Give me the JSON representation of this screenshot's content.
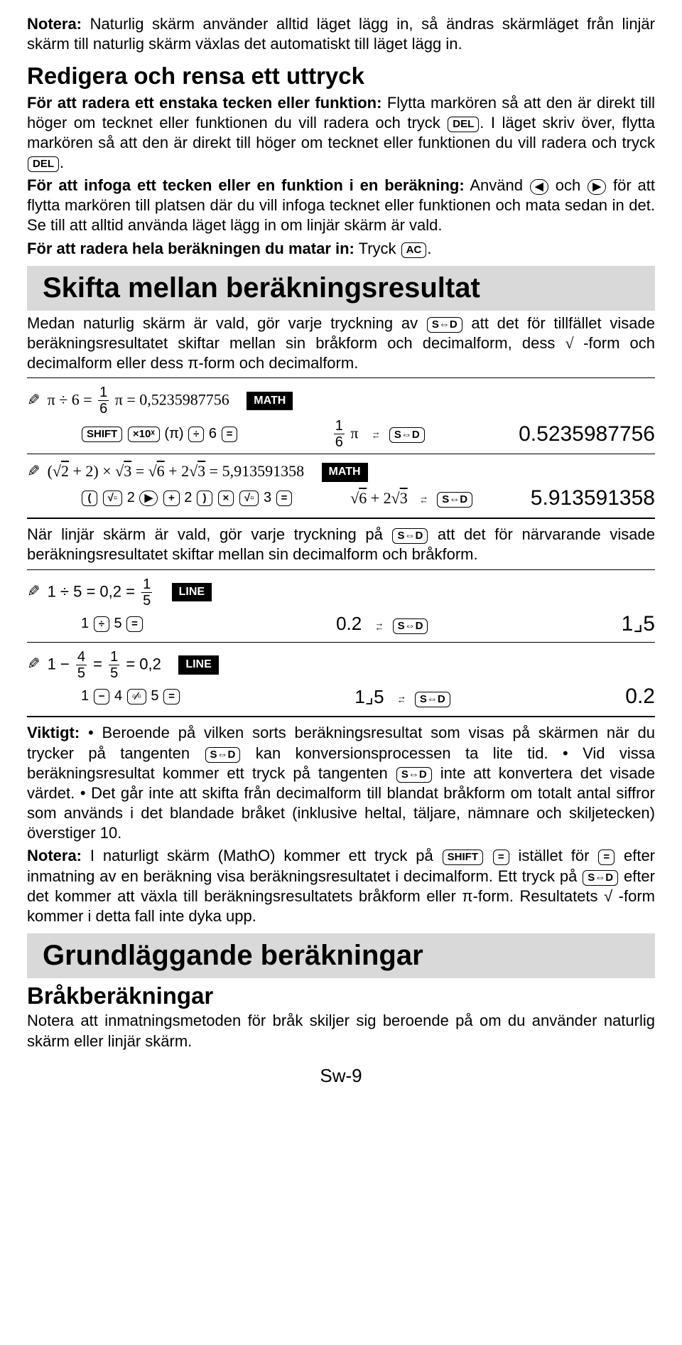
{
  "notera_top": {
    "label": "Notera:",
    "text": " Naturlig skärm använder alltid läget lägg in, så ändras skärmläget från linjär skärm till naturlig skärm växlas det automatiskt till läget lägg in."
  },
  "redigera": {
    "heading": "Redigera och rensa ett uttryck",
    "p1a": "För att radera ett enstaka tecken eller funktion:",
    "p1b": " Flytta markören så att den är direkt till höger om tecknet eller funktionen du vill radera och tryck ",
    "p1c": ". I läget skriv över, flytta markören så att den är direkt till höger om tecknet eller funktionen du vill radera och tryck ",
    "p2a": "För att infoga ett tecken eller en funktion i en beräkning:",
    "p2b": " Använd ",
    "p2c": " och ",
    "p2d": " för att flytta markören till platsen där du vill infoga tecknet eller funktionen och mata sedan in det. Se till att alltid använda läget lägg in om linjär skärm är vald.",
    "p3a": "För att radera hela beräkningen du matar in:",
    "p3b": " Tryck "
  },
  "keys": {
    "del": "DEL",
    "left": "◀",
    "right": "▶",
    "ac": "AC",
    "shift": "SHIFT",
    "x10x": "×10ˣ",
    "div": "÷",
    "eq": "=",
    "times": "×",
    "plus": "+",
    "minus": "−",
    "lparen": "(",
    "rparen": ")",
    "sqrt": "√▫",
    "frac": "▫⁄▫",
    "sd": "S⇔D",
    "six": "6",
    "two": "2",
    "three": "3",
    "one": "1",
    "four": "4",
    "five": "5",
    "pi_paren": "(π)"
  },
  "skifta": {
    "title": "Skifta mellan beräkningsresultat",
    "p1a": "Medan naturlig skärm är vald, gör varje tryckning av ",
    "p1b": " att det för tillfället visade beräkningsresultatet skiftar mellan sin bråkform och decimalform, dess ",
    "p1c": "-form och decimalform eller dess π-form och decimalform."
  },
  "badges": {
    "math": "MATH",
    "line": "LINE"
  },
  "ex1": {
    "expr_left": "π ÷ 6 = ",
    "expr_mid": " π  = 0,5235987756",
    "mid_disp_a": " π",
    "result": "0.5235987756",
    "frac_n": "1",
    "frac_d": "6"
  },
  "ex2": {
    "expr": "(√2 + 2) × √3 = √6 + 2√3 = 5,913591358",
    "mid_disp": "√6 + 2√3",
    "result": "5.913591358"
  },
  "linear_p": {
    "a": "När linjär skärm är vald, gör varje tryckning på ",
    "b": " att det för närvarande visade beräkningsresultatet skiftar mellan sin decimalform och bråkform."
  },
  "ex3": {
    "expr_left": "1 ÷ 5 = 0,2 = ",
    "frac_n": "1",
    "frac_d": "5",
    "left_res": "0.2",
    "right_res": "1⌟5"
  },
  "ex4": {
    "expr_left": "1 − ",
    "frac1_n": "4",
    "frac1_d": "5",
    "expr_mid": " = ",
    "frac2_n": "1",
    "frac2_d": "5",
    "expr_right": " = 0,2",
    "left_res": "1⌟5",
    "right_res": "0.2"
  },
  "viktigt": {
    "label": "Viktigt:",
    "t1": " • Beroende på vilken sorts beräkningsresultat som visas på skärmen när du trycker på tangenten ",
    "t2": " kan konversionsprocessen ta lite tid. • Vid vissa beräkningsresultat kommer ett tryck på tangenten ",
    "t3": " inte att konvertera det visade värdet. • Det går inte att skifta från decimalform till blandat bråkform om totalt antal siffror som används i det blandade bråket (inklusive heltal, täljare, nämnare och skiljetecken) överstiger 10."
  },
  "notera_bot": {
    "label": "Notera:",
    "t1": "  I naturligt skärm (MathO) kommer ett tryck på ",
    "t2": " istället för ",
    "t3": " efter inmatning av en beräkning visa beräkningsresultatet i decimalform. Ett tryck på ",
    "t4": " efter det kommer att växla till beräkningsresultatets bråkform eller π-form. Resultatets √ -form kommer i detta fall inte dyka upp."
  },
  "grund": {
    "title": "Grundläggande beräkningar",
    "sub": "Bråkberäkningar",
    "p": "Notera att inmatningsmetoden för bråk skiljer sig beroende på om du använder naturlig skärm eller linjär skärm."
  },
  "page": "Sw-9"
}
